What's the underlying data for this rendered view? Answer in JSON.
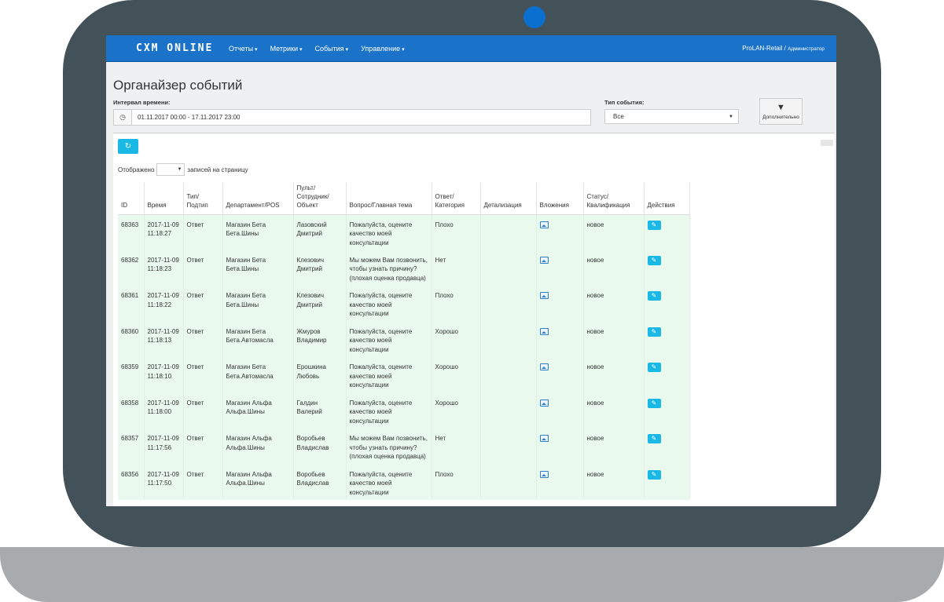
{
  "navbar": {
    "logo": "CXM ONLINE",
    "menu": [
      "Отчеты",
      "Метрики",
      "События",
      "Управление"
    ],
    "user": "ProLAN-Retail / ",
    "role": "Администратор"
  },
  "page": {
    "title": "Органайзер событий",
    "interval_label": "Интервал времени:",
    "interval_value": "01.11.2017 00:00 - 17.11.2017 23:00",
    "event_type_label": "Тип события:",
    "event_type_value": "Все",
    "more_label": "Дополнительно",
    "shown_label": "Отображено",
    "per_page_label": "записей на страницу"
  },
  "table": {
    "headers": [
      "ID",
      "Время",
      "Тип/ Подтип",
      "Департамент/POS",
      "Пульт/ Сотрудник/ Объект",
      "Вопрос/Главная тема",
      "Ответ/ Категория",
      "Детализация",
      "Вложения",
      "Статус/ Квалификация",
      "Действия"
    ],
    "rows": [
      {
        "id": "68363",
        "time": "2017-11-09 11:18:27",
        "type": "Ответ",
        "dept": "Магазин Бета Бета.Шины",
        "staff": "Лазовский Дмитрий",
        "question": "Пожалуйста, оцените качество моей консультации",
        "answer": "Плохо",
        "detail": "",
        "status": "новое"
      },
      {
        "id": "68362",
        "time": "2017-11-09 11:18:23",
        "type": "Ответ",
        "dept": "Магазин Бета Бета.Шины",
        "staff": "Клезович Дмитрий",
        "question": "Мы можем Вам позвонить, чтобы узнать причину? (плохая оценка продавца)",
        "answer": "Нет",
        "detail": "",
        "status": "новое"
      },
      {
        "id": "68361",
        "time": "2017-11-09 11:18:22",
        "type": "Ответ",
        "dept": "Магазин Бета Бета.Шины",
        "staff": "Клезович Дмитрий",
        "question": "Пожалуйста, оцените качество моей консультации",
        "answer": "Плохо",
        "detail": "",
        "status": "новое"
      },
      {
        "id": "68360",
        "time": "2017-11-09 11:18:13",
        "type": "Ответ",
        "dept": "Магазин Бета Бета.Автомасла",
        "staff": "Жмуров Владимир",
        "question": "Пожалуйста, оцените качество моей консультации",
        "answer": "Хорошо",
        "detail": "",
        "status": "новое"
      },
      {
        "id": "68359",
        "time": "2017-11-09 11:18:10",
        "type": "Ответ",
        "dept": "Магазин Бета Бета.Автомасла",
        "staff": "Ерошкина Любовь",
        "question": "Пожалуйста, оцените качество моей консультации",
        "answer": "Хорошо",
        "detail": "",
        "status": "новое"
      },
      {
        "id": "68358",
        "time": "2017-11-09 11:18:00",
        "type": "Ответ",
        "dept": "Магазин Альфа Альфа.Шины",
        "staff": "Галдин Валерий",
        "question": "Пожалуйста, оцените качество моей консультации",
        "answer": "Хорошо",
        "detail": "",
        "status": "новое"
      },
      {
        "id": "68357",
        "time": "2017-11-09 11:17:56",
        "type": "Ответ",
        "dept": "Магазин Альфа Альфа.Шины",
        "staff": "Воробьев Владислав",
        "question": "Мы можем Вам позвонить, чтобы узнать причину? (плохая оценка продавца)",
        "answer": "Нет",
        "detail": "",
        "status": "новое"
      },
      {
        "id": "68356",
        "time": "2017-11-09 11:17:50",
        "type": "Ответ",
        "dept": "Магазин Альфа Альфа.Шины",
        "staff": "Воробьев Владислав",
        "question": "Пожалуйста, оцените качество моей консультации",
        "answer": "Плохо",
        "detail": "",
        "status": "новое"
      }
    ]
  },
  "colors": {
    "navbar": "#1b73c9",
    "accent_button": "#1ab8e4",
    "row_background": "#eaf9ee",
    "frame": "#435159",
    "camera": "#0b6fd0"
  }
}
